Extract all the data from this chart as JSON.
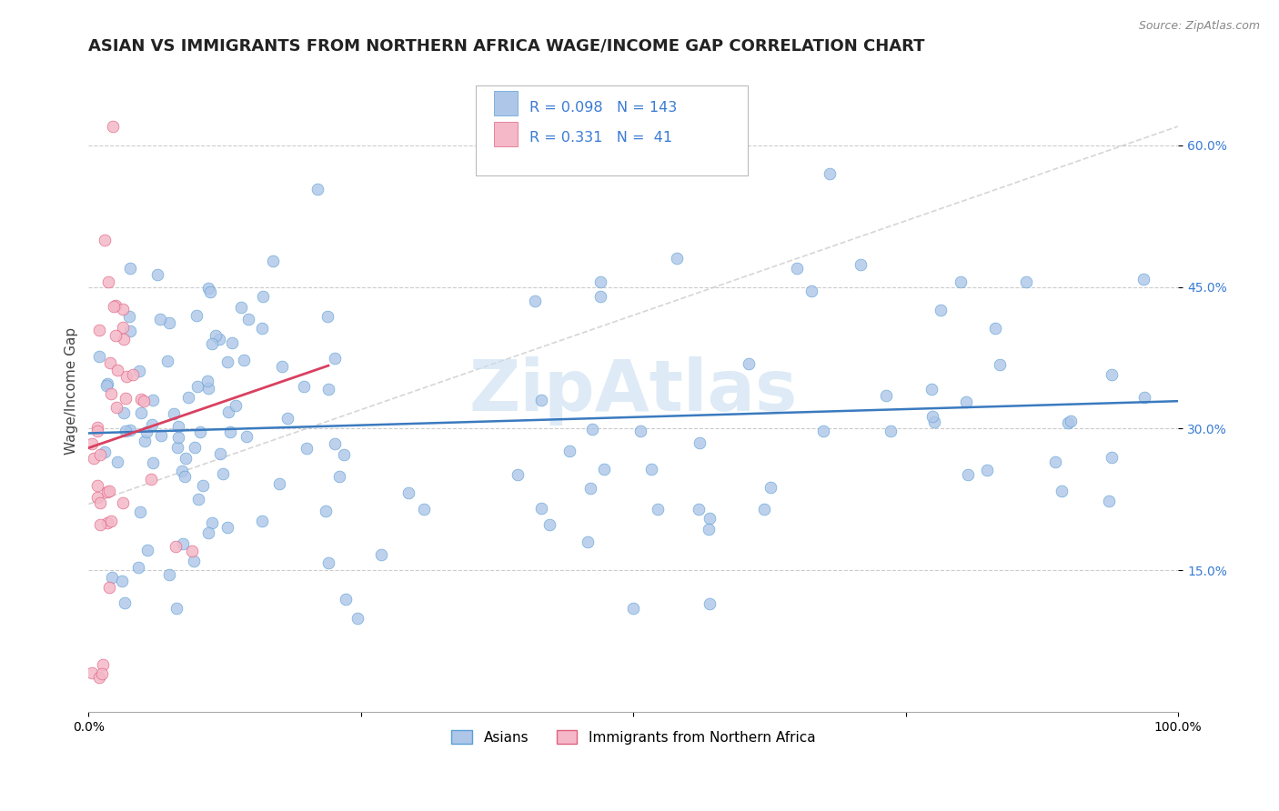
{
  "title": "ASIAN VS IMMIGRANTS FROM NORTHERN AFRICA WAGE/INCOME GAP CORRELATION CHART",
  "source_text": "Source: ZipAtlas.com",
  "ylabel": "Wage/Income Gap",
  "xmin": 0.0,
  "xmax": 1.0,
  "ymin": 0.0,
  "ymax": 0.68,
  "yticks": [
    0.15,
    0.3,
    0.45,
    0.6
  ],
  "ytick_labels": [
    "15.0%",
    "30.0%",
    "45.0%",
    "60.0%"
  ],
  "R_asian": 0.098,
  "N_asian": 143,
  "R_northern_africa": 0.331,
  "N_northern_africa": 41,
  "asian_color": "#aec6e8",
  "asian_edge_color": "#5a9fd4",
  "northern_africa_color": "#f4b8c8",
  "northern_africa_edge_color": "#e06080",
  "asian_line_color": "#3a7abf",
  "northern_africa_line_color": "#d94060",
  "reference_line_color": "#cccccc",
  "watermark": "ZipAtlas",
  "watermark_color": "#c8dff0",
  "legend_label_asian": "Asians",
  "legend_label_northern_africa": "Immigrants from Northern Africa",
  "background_color": "#ffffff",
  "grid_color": "#cccccc",
  "title_fontsize": 13,
  "axis_label_fontsize": 11,
  "tick_fontsize": 10,
  "legend_fontsize": 11
}
